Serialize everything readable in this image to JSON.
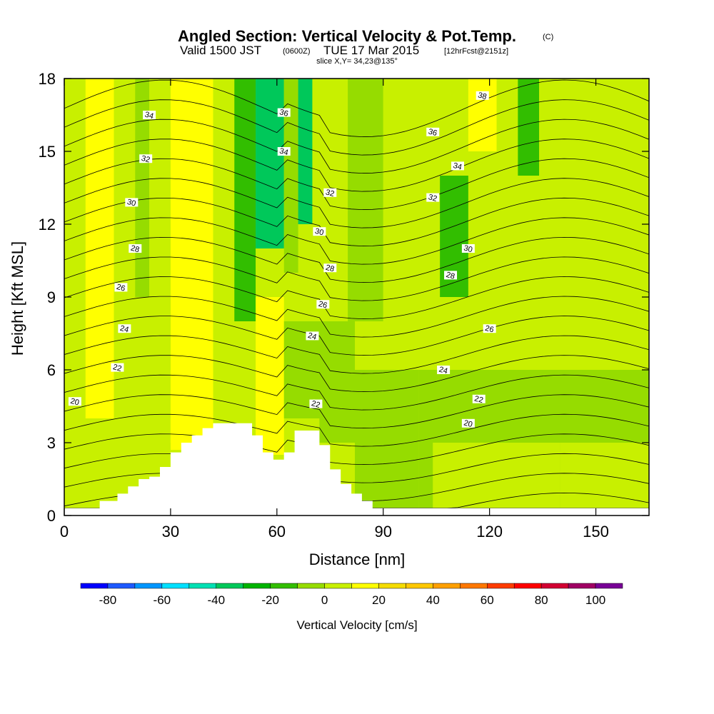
{
  "title": {
    "main": "Angled Section: Vertical Velocity & Pot.Temp.",
    "main_mark": "(C)",
    "valid_prefix": "Valid 1500 JST",
    "valid_utc": "(0600Z)",
    "valid_date": "TUE 17 Mar 2015",
    "fcst": "[12hrFcst@2151z]",
    "slice": "slice X,Y= 34,23@135°"
  },
  "chart_data": {
    "type": "heatmap",
    "xlabel": "Distance [nm]",
    "ylabel": "Height [Kft MSL]",
    "xlim": [
      0,
      165
    ],
    "ylim": [
      0,
      18
    ],
    "x_ticks": [
      0,
      30,
      60,
      90,
      120,
      150
    ],
    "y_ticks": [
      0,
      3,
      6,
      9,
      12,
      15,
      18
    ],
    "field": "Vertical Velocity [cm/s]",
    "colorbar": {
      "label": "Vertical Velocity [cm/s]",
      "ticks": [
        -80,
        -60,
        -40,
        -20,
        0,
        20,
        40,
        60,
        80,
        100
      ],
      "levels": [
        -90,
        -80,
        -70,
        -60,
        -50,
        -40,
        -30,
        -20,
        -10,
        0,
        10,
        20,
        30,
        40,
        50,
        60,
        70,
        80,
        90,
        100,
        110
      ],
      "colors": [
        "#0000ff",
        "#1e5aff",
        "#0096ff",
        "#00e0ff",
        "#00e0b4",
        "#00c85a",
        "#00b400",
        "#32be00",
        "#96dc00",
        "#c8f000",
        "#ffff00",
        "#f5dc00",
        "#ffc800",
        "#ffa000",
        "#ff7800",
        "#ff3c00",
        "#ff0000",
        "#d20032",
        "#a00064",
        "#780096"
      ]
    },
    "velocity_cells": [
      {
        "x": [
          0,
          6
        ],
        "y": [
          0.3,
          18
        ],
        "w": 0
      },
      {
        "x": [
          6,
          14
        ],
        "y": [
          2,
          18
        ],
        "w": 12
      },
      {
        "x": [
          14,
          20
        ],
        "y": [
          4,
          18
        ],
        "w": 2
      },
      {
        "x": [
          20,
          24
        ],
        "y": [
          4,
          18
        ],
        "w": -8
      },
      {
        "x": [
          24,
          30
        ],
        "y": [
          3,
          18
        ],
        "w": 4
      },
      {
        "x": [
          30,
          42
        ],
        "y": [
          3,
          18
        ],
        "w": 15
      },
      {
        "x": [
          42,
          48
        ],
        "y": [
          4,
          18
        ],
        "w": 6
      },
      {
        "x": [
          48,
          54
        ],
        "y": [
          8,
          18
        ],
        "w": -18
      },
      {
        "x": [
          54,
          62
        ],
        "y": [
          11,
          18
        ],
        "w": -38
      },
      {
        "x": [
          62,
          66
        ],
        "y": [
          10,
          18
        ],
        "w": -10
      },
      {
        "x": [
          66,
          70
        ],
        "y": [
          12,
          18
        ],
        "w": -35
      },
      {
        "x": [
          70,
          80
        ],
        "y": [
          9,
          18
        ],
        "w": 2
      },
      {
        "x": [
          80,
          90
        ],
        "y": [
          8,
          18
        ],
        "w": -4
      },
      {
        "x": [
          90,
          100
        ],
        "y": [
          6,
          18
        ],
        "w": 4
      },
      {
        "x": [
          100,
          108
        ],
        "y": [
          6,
          18
        ],
        "w": 0
      },
      {
        "x": [
          106,
          114
        ],
        "y": [
          9,
          14
        ],
        "w": -15
      },
      {
        "x": [
          114,
          122
        ],
        "y": [
          15,
          18
        ],
        "w": 14
      },
      {
        "x": [
          122,
          128
        ],
        "y": [
          6,
          18
        ],
        "w": 4
      },
      {
        "x": [
          128,
          134
        ],
        "y": [
          14,
          18
        ],
        "w": -12
      },
      {
        "x": [
          134,
          165
        ],
        "y": [
          6,
          18
        ],
        "w": 4
      },
      {
        "x": [
          0,
          14
        ],
        "y": [
          0.3,
          4
        ],
        "w": 4
      },
      {
        "x": [
          14,
          30
        ],
        "y": [
          4,
          9
        ],
        "w": 8
      },
      {
        "x": [
          30,
          42
        ],
        "y": [
          2.7,
          6
        ],
        "w": 14
      },
      {
        "x": [
          54,
          62
        ],
        "y": [
          2.5,
          9
        ],
        "w": 16
      },
      {
        "x": [
          62,
          74
        ],
        "y": [
          4,
          8
        ],
        "w": -2
      },
      {
        "x": [
          72,
          82
        ],
        "y": [
          3,
          8
        ],
        "w": -6
      },
      {
        "x": [
          82,
          100
        ],
        "y": [
          0.3,
          6
        ],
        "w": -4
      },
      {
        "x": [
          100,
          165
        ],
        "y": [
          0.3,
          6
        ],
        "w": -2
      },
      {
        "x": [
          104,
          140
        ],
        "y": [
          0.3,
          3
        ],
        "w": 6
      },
      {
        "x": [
          140,
          165
        ],
        "y": [
          0.3,
          3
        ],
        "w": 2
      }
    ],
    "terrain_profile": {
      "x": [
        0,
        10,
        10,
        15,
        15,
        18,
        18,
        21,
        21,
        24,
        24,
        27,
        27,
        30,
        30,
        33,
        33,
        36,
        36,
        39,
        39,
        42,
        42,
        46,
        46,
        53,
        53,
        56,
        56,
        59,
        59,
        62,
        62,
        65,
        65,
        68,
        68,
        72,
        72,
        75,
        75,
        78,
        78,
        81,
        81,
        84,
        84,
        87,
        87,
        90,
        90,
        165
      ],
      "y": [
        0.3,
        0.3,
        0.6,
        0.6,
        0.9,
        0.9,
        1.2,
        1.2,
        1.5,
        1.5,
        1.6,
        1.6,
        2.0,
        2.0,
        2.6,
        2.6,
        3.0,
        3.0,
        3.3,
        3.3,
        3.6,
        3.6,
        3.8,
        3.8,
        3.8,
        3.8,
        3.3,
        3.3,
        2.6,
        2.6,
        2.3,
        2.3,
        2.6,
        2.6,
        3.5,
        3.5,
        3.5,
        3.5,
        2.9,
        2.9,
        1.9,
        1.9,
        1.3,
        1.3,
        0.9,
        0.9,
        0.6,
        0.6,
        0.3,
        0.3,
        0.3,
        0.3
      ]
    },
    "theta_contour_labels": [
      {
        "text": "20",
        "x": 3,
        "y": 4.7
      },
      {
        "text": "22",
        "x": 15,
        "y": 6.1
      },
      {
        "text": "24",
        "x": 17,
        "y": 7.7
      },
      {
        "text": "26",
        "x": 16,
        "y": 9.4
      },
      {
        "text": "28",
        "x": 20,
        "y": 11.0
      },
      {
        "text": "30",
        "x": 19,
        "y": 12.9
      },
      {
        "text": "32",
        "x": 23,
        "y": 14.7
      },
      {
        "text": "34",
        "x": 24,
        "y": 16.5
      },
      {
        "text": "36",
        "x": 62,
        "y": 16.6
      },
      {
        "text": "34",
        "x": 62,
        "y": 15.0
      },
      {
        "text": "32",
        "x": 75,
        "y": 13.3
      },
      {
        "text": "30",
        "x": 72,
        "y": 11.7
      },
      {
        "text": "28",
        "x": 75,
        "y": 10.2
      },
      {
        "text": "26",
        "x": 73,
        "y": 8.7
      },
      {
        "text": "24",
        "x": 70,
        "y": 7.4
      },
      {
        "text": "22",
        "x": 71,
        "y": 4.6
      },
      {
        "text": "38",
        "x": 118,
        "y": 17.3
      },
      {
        "text": "36",
        "x": 104,
        "y": 15.8
      },
      {
        "text": "34",
        "x": 111,
        "y": 14.4
      },
      {
        "text": "32",
        "x": 104,
        "y": 13.1
      },
      {
        "text": "30",
        "x": 114,
        "y": 11.0
      },
      {
        "text": "28",
        "x": 109,
        "y": 9.9
      },
      {
        "text": "26",
        "x": 120,
        "y": 7.7
      },
      {
        "text": "24",
        "x": 107,
        "y": 6.0
      },
      {
        "text": "22",
        "x": 117,
        "y": 4.8
      },
      {
        "text": "20",
        "x": 114,
        "y": 3.8
      }
    ],
    "theta_contour_levels": [
      17,
      18,
      19,
      20,
      21,
      22,
      23,
      24,
      25,
      26,
      27,
      28,
      29,
      30,
      31,
      32,
      33,
      34,
      35,
      36,
      37,
      38,
      39
    ]
  }
}
